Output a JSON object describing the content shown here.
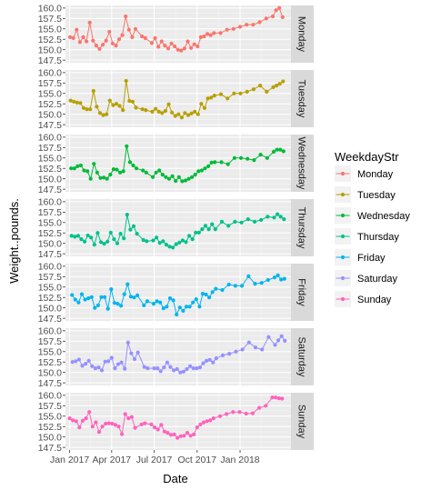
{
  "chart_data": {
    "type": "line",
    "xlabel": "Date",
    "ylabel": "Weight..pounds.",
    "ylim": [
      147.5,
      160.0
    ],
    "yticks": [
      147.5,
      150.0,
      152.5,
      155.0,
      157.5,
      160.0
    ],
    "ytick_labels": [
      "147.5",
      "150.0",
      "152.5",
      "155.0",
      "157.5",
      "160.0"
    ],
    "xlim": [
      "2016-12-23",
      "2018-04-20"
    ],
    "xticks": [
      "2017-01-01",
      "2017-04-01",
      "2017-07-01",
      "2017-10-01",
      "2018-01-01"
    ],
    "xtick_labels": [
      "Jan 2017",
      "Apr 2017",
      "Jul 2017",
      "Oct 2017",
      "Jan 2018"
    ],
    "legend": {
      "title": "WeekdayStr",
      "position": "right"
    },
    "grid": true,
    "series": [
      {
        "name": "Monday",
        "color": "#F8766D",
        "x": [
          "2017-01-02",
          "2017-01-09",
          "2017-01-16",
          "2017-01-23",
          "2017-01-30",
          "2017-02-06",
          "2017-02-13",
          "2017-02-20",
          "2017-02-27",
          "2017-03-06",
          "2017-03-13",
          "2017-03-20",
          "2017-03-27",
          "2017-04-03",
          "2017-04-10",
          "2017-04-17",
          "2017-04-24",
          "2017-05-01",
          "2017-05-08",
          "2017-05-15",
          "2017-05-22",
          "2017-06-05",
          "2017-06-12",
          "2017-06-26",
          "2017-07-03",
          "2017-07-10",
          "2017-07-17",
          "2017-07-24",
          "2017-07-31",
          "2017-08-07",
          "2017-08-14",
          "2017-08-21",
          "2017-08-28",
          "2017-09-04",
          "2017-09-11",
          "2017-09-18",
          "2017-09-25",
          "2017-10-02",
          "2017-10-09",
          "2017-10-16",
          "2017-10-23",
          "2017-10-30",
          "2017-11-06",
          "2017-11-20",
          "2017-12-04",
          "2017-12-18",
          "2018-01-01",
          "2018-01-15",
          "2018-01-29",
          "2018-02-12",
          "2018-02-26",
          "2018-03-12",
          "2018-03-19",
          "2018-03-26",
          "2018-04-02"
        ],
        "values": [
          153.0,
          152.8,
          154.8,
          151.8,
          153.0,
          152.0,
          156.5,
          152.2,
          151.0,
          150.2,
          151.2,
          152.2,
          154.3,
          151.5,
          151.0,
          152.5,
          153.5,
          158.0,
          154.8,
          153.0,
          155.0,
          153.2,
          152.8,
          151.6,
          152.8,
          150.7,
          152.0,
          151.0,
          150.3,
          151.5,
          150.8,
          150.0,
          149.8,
          150.3,
          152.0,
          150.4,
          151.3,
          150.8,
          153.0,
          153.2,
          153.8,
          153.5,
          154.0,
          154.0,
          154.8,
          155.0,
          155.5,
          156.0,
          156.0,
          156.6,
          157.5,
          158.0,
          159.5,
          160.0,
          157.8
        ]
      },
      {
        "name": "Tuesday",
        "color": "#B79F00",
        "x": [
          "2017-01-03",
          "2017-01-10",
          "2017-01-17",
          "2017-01-24",
          "2017-01-31",
          "2017-02-07",
          "2017-02-14",
          "2017-02-21",
          "2017-02-28",
          "2017-03-07",
          "2017-03-14",
          "2017-03-21",
          "2017-03-28",
          "2017-04-04",
          "2017-04-11",
          "2017-04-18",
          "2017-04-25",
          "2017-05-02",
          "2017-05-09",
          "2017-05-16",
          "2017-05-23",
          "2017-06-06",
          "2017-06-13",
          "2017-06-27",
          "2017-07-04",
          "2017-07-11",
          "2017-07-18",
          "2017-07-25",
          "2017-08-01",
          "2017-08-08",
          "2017-08-15",
          "2017-08-22",
          "2017-08-29",
          "2017-09-05",
          "2017-09-12",
          "2017-09-19",
          "2017-09-26",
          "2017-10-03",
          "2017-10-10",
          "2017-10-17",
          "2017-10-24",
          "2017-10-31",
          "2017-11-07",
          "2017-11-21",
          "2017-12-05",
          "2017-12-19",
          "2018-01-02",
          "2018-01-16",
          "2018-01-30",
          "2018-02-13",
          "2018-02-27",
          "2018-03-13",
          "2018-03-20",
          "2018-03-27",
          "2018-04-03"
        ],
        "values": [
          153.3,
          153.0,
          152.8,
          152.7,
          151.5,
          151.2,
          151.2,
          155.6,
          151.8,
          150.3,
          149.8,
          150.0,
          153.3,
          152.2,
          152.5,
          152.0,
          151.0,
          158.0,
          153.2,
          153.0,
          151.6,
          151.2,
          151.0,
          150.6,
          151.3,
          150.6,
          150.3,
          150.8,
          152.4,
          150.4,
          149.6,
          150.0,
          149.2,
          150.3,
          149.8,
          150.2,
          150.6,
          150.0,
          152.5,
          151.5,
          153.8,
          154.0,
          154.5,
          154.8,
          153.8,
          155.0,
          155.0,
          155.4,
          156.0,
          156.9,
          155.4,
          156.5,
          156.9,
          157.3,
          157.9
        ]
      },
      {
        "name": "Wednesday",
        "color": "#00BA38",
        "x": [
          "2017-01-04",
          "2017-01-11",
          "2017-01-18",
          "2017-01-25",
          "2017-02-01",
          "2017-02-08",
          "2017-02-15",
          "2017-02-22",
          "2017-03-01",
          "2017-03-08",
          "2017-03-15",
          "2017-03-22",
          "2017-03-29",
          "2017-04-05",
          "2017-04-12",
          "2017-04-19",
          "2017-04-26",
          "2017-05-03",
          "2017-05-10",
          "2017-05-17",
          "2017-05-24",
          "2017-06-07",
          "2017-06-14",
          "2017-06-28",
          "2017-07-05",
          "2017-07-12",
          "2017-07-19",
          "2017-07-26",
          "2017-08-02",
          "2017-08-09",
          "2017-08-16",
          "2017-08-23",
          "2017-08-30",
          "2017-09-06",
          "2017-09-13",
          "2017-09-20",
          "2017-09-27",
          "2017-10-04",
          "2017-10-11",
          "2017-10-18",
          "2017-10-25",
          "2017-11-01",
          "2017-11-08",
          "2017-11-22",
          "2017-12-06",
          "2017-12-20",
          "2018-01-03",
          "2018-01-17",
          "2018-01-31",
          "2018-02-14",
          "2018-02-28",
          "2018-03-14",
          "2018-03-21",
          "2018-03-28",
          "2018-04-04"
        ],
        "values": [
          152.5,
          152.5,
          153.0,
          153.2,
          152.0,
          151.8,
          150.0,
          153.6,
          151.5,
          150.2,
          150.3,
          150.0,
          151.0,
          152.3,
          152.2,
          151.5,
          151.8,
          157.8,
          154.0,
          153.2,
          152.5,
          152.0,
          151.5,
          150.4,
          151.5,
          152.0,
          151.0,
          150.4,
          150.0,
          150.6,
          149.5,
          150.4,
          149.4,
          149.6,
          150.0,
          150.4,
          151.0,
          151.8,
          152.0,
          152.5,
          153.0,
          153.9,
          154.0,
          154.0,
          153.5,
          155.0,
          155.0,
          154.8,
          154.5,
          155.8,
          155.0,
          156.5,
          157.0,
          157.0,
          156.6
        ]
      },
      {
        "name": "Thursday",
        "color": "#00C08B",
        "x": [
          "2017-01-05",
          "2017-01-12",
          "2017-01-19",
          "2017-01-26",
          "2017-02-02",
          "2017-02-09",
          "2017-02-16",
          "2017-02-23",
          "2017-03-02",
          "2017-03-09",
          "2017-03-16",
          "2017-03-23",
          "2017-03-30",
          "2017-04-06",
          "2017-04-13",
          "2017-04-20",
          "2017-04-27",
          "2017-05-04",
          "2017-05-11",
          "2017-05-18",
          "2017-05-25",
          "2017-06-08",
          "2017-06-15",
          "2017-06-29",
          "2017-07-06",
          "2017-07-13",
          "2017-07-20",
          "2017-07-27",
          "2017-08-03",
          "2017-08-10",
          "2017-08-17",
          "2017-08-24",
          "2017-08-31",
          "2017-09-07",
          "2017-09-14",
          "2017-09-21",
          "2017-09-28",
          "2017-10-05",
          "2017-10-12",
          "2017-10-19",
          "2017-10-26",
          "2017-11-02",
          "2017-11-09",
          "2017-11-23",
          "2017-12-07",
          "2017-12-21",
          "2018-01-04",
          "2018-01-18",
          "2018-02-01",
          "2018-02-15",
          "2018-03-01",
          "2018-03-15",
          "2018-03-22",
          "2018-03-29",
          "2018-04-05"
        ],
        "values": [
          151.8,
          151.6,
          151.8,
          151.0,
          150.4,
          151.9,
          151.4,
          149.7,
          152.5,
          150.3,
          149.9,
          150.4,
          152.6,
          151.0,
          150.0,
          152.3,
          151.2,
          156.9,
          153.3,
          154.1,
          152.3,
          150.8,
          150.5,
          150.7,
          151.4,
          150.1,
          150.5,
          149.7,
          149.2,
          149.0,
          149.8,
          150.2,
          150.7,
          150.3,
          151.8,
          151.0,
          152.6,
          152.6,
          153.4,
          154.2,
          153.4,
          154.6,
          153.4,
          155.2,
          154.2,
          155.2,
          155.0,
          155.8,
          155.2,
          155.6,
          156.4,
          156.2,
          157.0,
          156.4,
          155.8
        ]
      },
      {
        "name": "Friday",
        "color": "#00B4EF",
        "x": [
          "2017-01-06",
          "2017-01-13",
          "2017-01-20",
          "2017-01-27",
          "2017-02-03",
          "2017-02-10",
          "2017-02-17",
          "2017-02-24",
          "2017-03-03",
          "2017-03-10",
          "2017-03-17",
          "2017-03-24",
          "2017-03-31",
          "2017-04-07",
          "2017-04-14",
          "2017-04-21",
          "2017-04-28",
          "2017-05-05",
          "2017-05-12",
          "2017-05-19",
          "2017-05-26",
          "2017-06-09",
          "2017-06-16",
          "2017-06-30",
          "2017-07-07",
          "2017-07-14",
          "2017-07-21",
          "2017-07-28",
          "2017-08-04",
          "2017-08-11",
          "2017-08-18",
          "2017-08-25",
          "2017-09-01",
          "2017-09-08",
          "2017-09-15",
          "2017-09-22",
          "2017-09-29",
          "2017-10-06",
          "2017-10-13",
          "2017-10-20",
          "2017-10-27",
          "2017-11-03",
          "2017-11-10",
          "2017-11-24",
          "2017-12-08",
          "2017-12-22",
          "2018-01-05",
          "2018-01-19",
          "2018-02-02",
          "2018-02-16",
          "2018-03-02",
          "2018-03-16",
          "2018-03-23",
          "2018-03-30",
          "2018-04-06"
        ],
        "values": [
          153.1,
          152.0,
          151.3,
          153.3,
          152.0,
          152.3,
          152.6,
          150.0,
          150.6,
          152.6,
          152.6,
          149.8,
          154.5,
          151.2,
          151.0,
          150.5,
          153.3,
          155.7,
          152.7,
          152.5,
          153.0,
          150.6,
          151.6,
          151.0,
          151.6,
          151.3,
          149.9,
          150.3,
          152.3,
          151.8,
          148.4,
          150.1,
          149.3,
          150.3,
          150.3,
          151.3,
          152.1,
          150.3,
          153.4,
          153.2,
          152.5,
          153.8,
          154.6,
          154.3,
          155.6,
          155.3,
          155.3,
          157.6,
          155.8,
          156.0,
          156.7,
          157.3,
          157.8,
          156.8,
          157.0
        ]
      },
      {
        "name": "Saturday",
        "color": "#9590FF",
        "x": [
          "2017-01-07",
          "2017-01-14",
          "2017-01-21",
          "2017-01-28",
          "2017-02-04",
          "2017-02-11",
          "2017-02-18",
          "2017-02-25",
          "2017-03-04",
          "2017-03-11",
          "2017-03-18",
          "2017-03-25",
          "2017-04-01",
          "2017-04-08",
          "2017-04-15",
          "2017-04-22",
          "2017-04-29",
          "2017-05-06",
          "2017-05-13",
          "2017-05-20",
          "2017-05-27",
          "2017-06-10",
          "2017-06-17",
          "2017-07-01",
          "2017-07-08",
          "2017-07-15",
          "2017-07-22",
          "2017-07-29",
          "2017-08-05",
          "2017-08-12",
          "2017-08-19",
          "2017-08-26",
          "2017-09-02",
          "2017-09-09",
          "2017-09-16",
          "2017-09-23",
          "2017-09-30",
          "2017-10-07",
          "2017-10-14",
          "2017-10-21",
          "2017-10-28",
          "2017-11-04",
          "2017-11-11",
          "2017-11-25",
          "2017-12-09",
          "2017-12-23",
          "2018-01-06",
          "2018-01-20",
          "2018-02-03",
          "2018-02-17",
          "2018-03-03",
          "2018-03-17",
          "2018-03-24",
          "2018-03-31",
          "2018-04-07"
        ],
        "values": [
          152.5,
          152.7,
          153.1,
          151.6,
          152.1,
          152.8,
          151.5,
          151.0,
          151.2,
          150.5,
          152.6,
          152.7,
          153.5,
          151.0,
          152.0,
          152.4,
          150.9,
          157.2,
          154.6,
          153.2,
          154.8,
          151.3,
          151.0,
          151.0,
          151.0,
          150.3,
          151.2,
          152.4,
          151.3,
          150.5,
          150.8,
          150.0,
          150.2,
          150.8,
          151.5,
          151.0,
          151.0,
          151.2,
          152.2,
          152.8,
          153.0,
          152.4,
          153.4,
          154.1,
          154.5,
          155.0,
          155.5,
          157.2,
          156.0,
          155.5,
          158.5,
          156.6,
          157.7,
          158.7,
          157.6
        ]
      },
      {
        "name": "Sunday",
        "color": "#FF62BC",
        "x": [
          "2017-01-01",
          "2017-01-08",
          "2017-01-15",
          "2017-01-22",
          "2017-01-29",
          "2017-02-05",
          "2017-02-12",
          "2017-02-19",
          "2017-02-26",
          "2017-03-05",
          "2017-03-12",
          "2017-03-19",
          "2017-03-26",
          "2017-04-02",
          "2017-04-09",
          "2017-04-16",
          "2017-04-23",
          "2017-04-30",
          "2017-05-07",
          "2017-05-14",
          "2017-05-21",
          "2017-06-04",
          "2017-06-11",
          "2017-06-25",
          "2017-07-02",
          "2017-07-09",
          "2017-07-16",
          "2017-07-23",
          "2017-07-30",
          "2017-08-06",
          "2017-08-13",
          "2017-08-20",
          "2017-08-27",
          "2017-09-03",
          "2017-09-10",
          "2017-09-17",
          "2017-09-24",
          "2017-10-01",
          "2017-10-08",
          "2017-10-15",
          "2017-10-22",
          "2017-10-29",
          "2017-11-05",
          "2017-11-19",
          "2017-12-03",
          "2017-12-17",
          "2017-12-31",
          "2018-01-14",
          "2018-01-28",
          "2018-02-11",
          "2018-02-25",
          "2018-03-11",
          "2018-03-18",
          "2018-03-25",
          "2018-04-01"
        ],
        "values": [
          154.5,
          154.0,
          153.8,
          152.3,
          153.9,
          154.5,
          156.0,
          152.5,
          153.5,
          151.2,
          152.5,
          153.2,
          153.3,
          153.2,
          152.9,
          152.5,
          150.7,
          155.5,
          154.5,
          154.8,
          152.2,
          153.0,
          153.3,
          153.0,
          152.3,
          151.8,
          152.9,
          151.3,
          151.0,
          150.5,
          150.6,
          149.8,
          150.2,
          150.3,
          151.0,
          150.3,
          150.6,
          152.3,
          153.0,
          153.5,
          153.8,
          154.0,
          154.5,
          155.0,
          155.5,
          156.0,
          156.0,
          155.6,
          155.7,
          157.0,
          157.5,
          159.5,
          159.5,
          159.3,
          159.2
        ]
      }
    ]
  }
}
